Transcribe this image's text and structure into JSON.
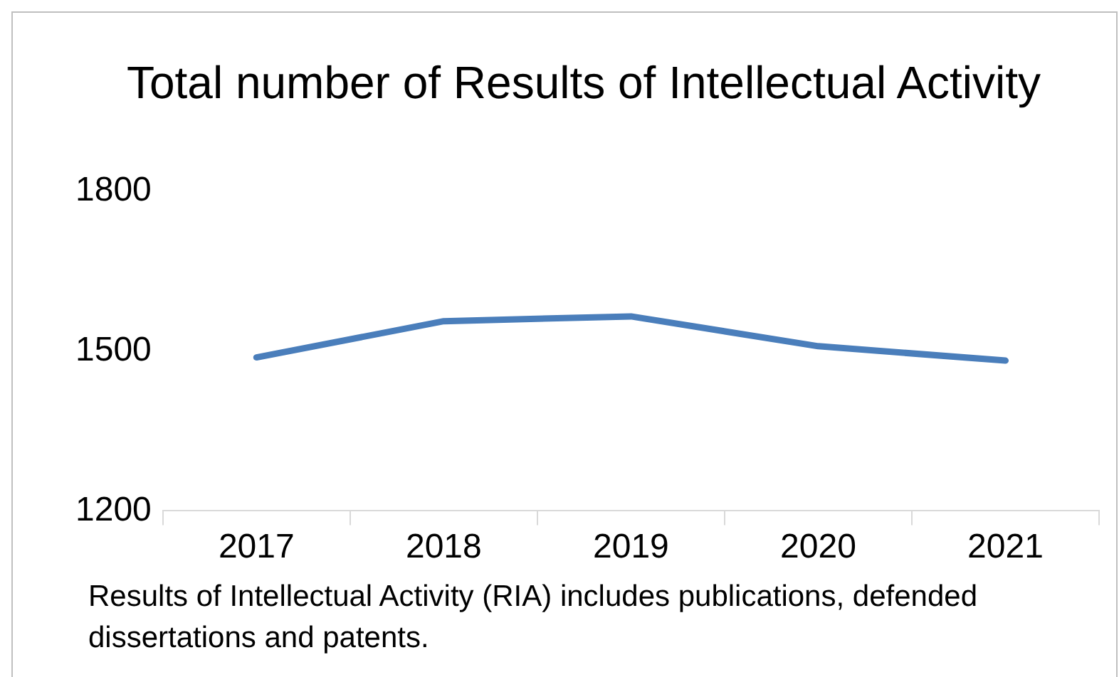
{
  "chart_data": {
    "type": "line",
    "title": "Total number of Results of Intellectual Activity",
    "categories": [
      "2017",
      "2018",
      "2019",
      "2020",
      "2021"
    ],
    "series": [
      {
        "color": "#4a7ebb",
        "values": [
          1488,
          1556,
          1565,
          1509,
          1482
        ]
      }
    ],
    "ylim": [
      1200,
      1800
    ],
    "yticks": [
      1200,
      1500,
      1800
    ],
    "grid": false,
    "legend": false,
    "marker": "none",
    "line_style": "solid",
    "annotations": [
      "Results of Intellectual Activity (RIA) includes publications, defended dissertations and patents."
    ]
  }
}
